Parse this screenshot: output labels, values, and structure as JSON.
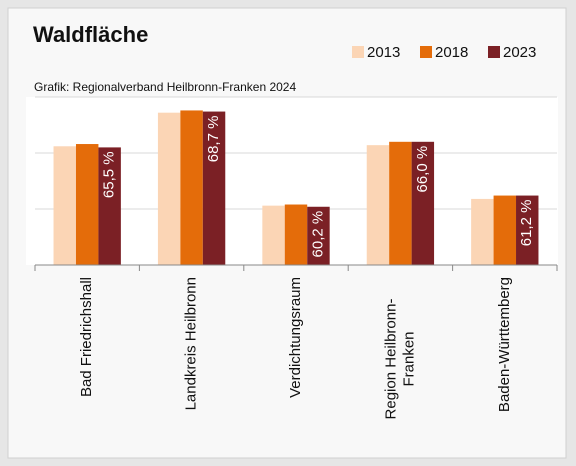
{
  "chart_data": {
    "type": "bar",
    "title": "Waldfläche",
    "subtitle": "Grafik: Regionalverband Heilbronn-Franken 2024",
    "categories": [
      "Bad Friedrichshall",
      "Landkreis Heilbronn",
      "Verdichtungsraum",
      "Region Heilbronn-\nFranken",
      "Baden-Württemberg"
    ],
    "series": [
      {
        "name": "2013",
        "color": "#fbd5b5",
        "values": [
          65.6,
          68.6,
          60.3,
          65.7,
          60.9
        ]
      },
      {
        "name": "2018",
        "color": "#e46c0a",
        "values": [
          65.8,
          68.8,
          60.4,
          66.0,
          61.2
        ]
      },
      {
        "name": "2023",
        "color": "#7b2025",
        "values": [
          65.5,
          68.7,
          60.2,
          66.0,
          61.2
        ],
        "value_labels": [
          "65,5 %",
          "68,7 %",
          "60,2 %",
          "66,0 %",
          "61,2 %"
        ]
      }
    ],
    "ylim": [
      55,
      70
    ],
    "yticks": [
      55,
      60,
      65,
      70
    ],
    "grid": true,
    "legend": "top-right"
  }
}
